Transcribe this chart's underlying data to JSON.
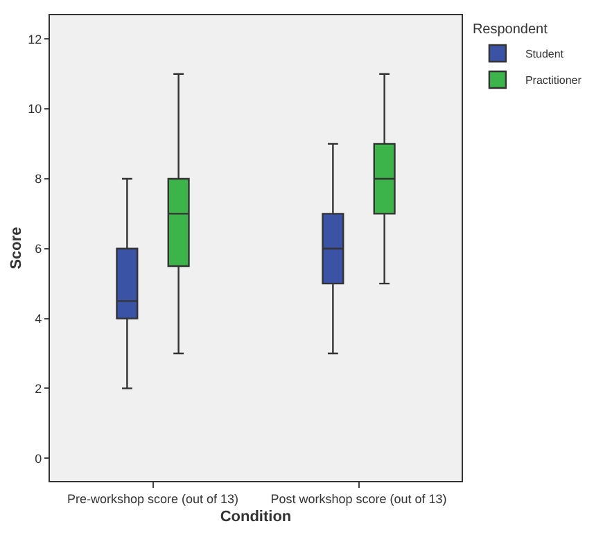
{
  "chart_data": {
    "type": "box",
    "xlabel": "Condition",
    "ylabel": "Score",
    "legend_title": "Respondent",
    "categories": [
      "Pre-workshop score (out of 13)",
      "Post workshop score (out of 13)"
    ],
    "ylim": [
      -0.65,
      12.68
    ],
    "yticks": [
      0,
      2,
      4,
      6,
      8,
      10,
      12
    ],
    "grid": false,
    "legend": "top right",
    "series": [
      {
        "name": "Student",
        "color": "#3a53a4",
        "boxes": [
          {
            "low": 2,
            "q1": 4,
            "median": 4.5,
            "q3": 6,
            "high": 8
          },
          {
            "low": 3,
            "q1": 5,
            "median": 6,
            "q3": 7,
            "high": 9
          }
        ]
      },
      {
        "name": "Practitioner",
        "color": "#3cb44a",
        "boxes": [
          {
            "low": 3,
            "q1": 5.5,
            "median": 7,
            "q3": 8,
            "high": 11
          },
          {
            "low": 5,
            "q1": 7,
            "median": 8,
            "q3": 9,
            "high": 11
          }
        ]
      }
    ]
  }
}
